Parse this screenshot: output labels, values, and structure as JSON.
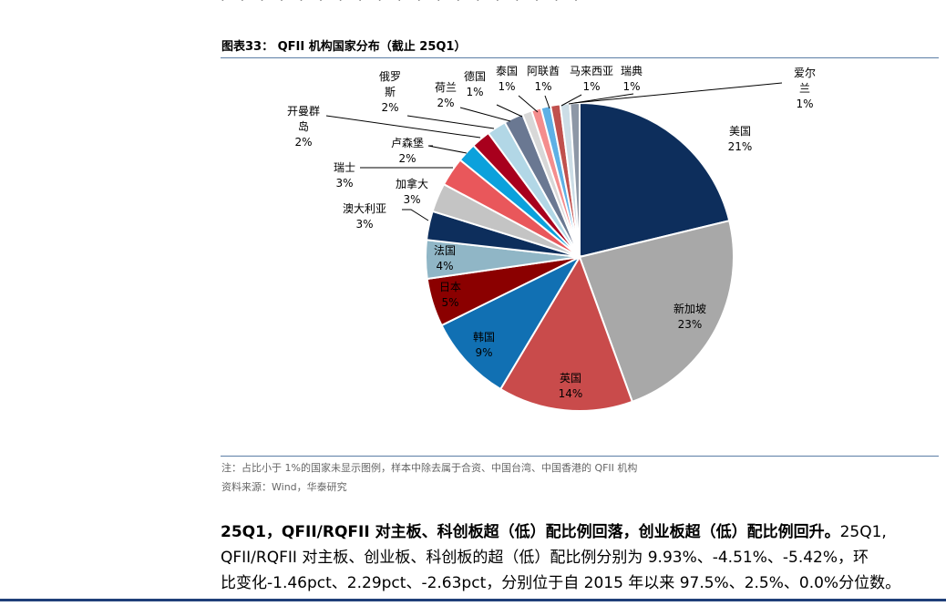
{
  "header": {
    "cut_line": "· · · · · · · · · · · · · · · · · · ·"
  },
  "figure": {
    "title": "图表33： QFII 机构国家分布（截止 25Q1）",
    "note": "注：占比小于 1%的国家未显示图例，样本中除去属于合资、中国台湾、中国香港的 QFII 机构",
    "source": "资料来源：Wind，华泰研究"
  },
  "chart_data": {
    "type": "pie",
    "title": "",
    "start_angle": "12 o'clock, clockwise",
    "slices": [
      {
        "label": "美国",
        "value": 21,
        "display": "21%",
        "color": "#0d2e5c"
      },
      {
        "label": "新加坡",
        "value": 23,
        "display": "23%",
        "color": "#a8a8a8"
      },
      {
        "label": "英国",
        "value": 14,
        "display": "14%",
        "color": "#c94b4b"
      },
      {
        "label": "韩国",
        "value": 9,
        "display": "9%",
        "color": "#1170b3"
      },
      {
        "label": "日本",
        "value": 5,
        "display": "5%",
        "color": "#8b0000"
      },
      {
        "label": "法国",
        "value": 4,
        "display": "4%",
        "color": "#90b6c6"
      },
      {
        "label": "澳大利亚",
        "value": 3,
        "display": "3%",
        "color": "#0d2e5c"
      },
      {
        "label": "加拿大",
        "value": 3,
        "display": "3%",
        "color": "#c4c4c4"
      },
      {
        "label": "瑞士",
        "value": 3,
        "display": "3%",
        "color": "#e9575b"
      },
      {
        "label": "卢森堡",
        "value": 2,
        "display": "2%",
        "color": "#0ba1dc"
      },
      {
        "label": "开曼群岛",
        "value": 2,
        "display": "2%",
        "color": "#a8001d"
      },
      {
        "label": "俄罗斯",
        "value": 2,
        "display": "2%",
        "color": "#b2d7e6"
      },
      {
        "label": "荷兰",
        "value": 2,
        "display": "2%",
        "color": "#6a7892"
      },
      {
        "label": "德国",
        "value": 1,
        "display": "1%",
        "color": "#d8d8d8"
      },
      {
        "label": "泰国",
        "value": 1,
        "display": "1%",
        "color": "#f48d8d"
      },
      {
        "label": "阿联酋",
        "value": 1,
        "display": "1%",
        "color": "#5eb0e5"
      },
      {
        "label": "马来西亚",
        "value": 1,
        "display": "1%",
        "color": "#c0504d"
      },
      {
        "label": "瑞典",
        "value": 1,
        "display": "1%",
        "color": "#ccdde6"
      },
      {
        "label": "爱尔兰",
        "value": 1,
        "display": "1%",
        "color": "#8d97a6"
      }
    ]
  },
  "paragraph": {
    "head": "25Q1，QFII/RQFII 对主板、科创板超（低）配比例回落，创业板超（低）配比例回升。",
    "line1_tail": "25Q1,",
    "line2": "QFII/RQFII 对主板、创业板、科创板的超（低）配比例分别为 9.93%、-4.51%、-5.42%，环",
    "line3": "比变化-1.46pct、2.29pct、-2.63pct，分别位于自 2015 年以来 97.5%、2.5%、0.0%分位数。"
  }
}
